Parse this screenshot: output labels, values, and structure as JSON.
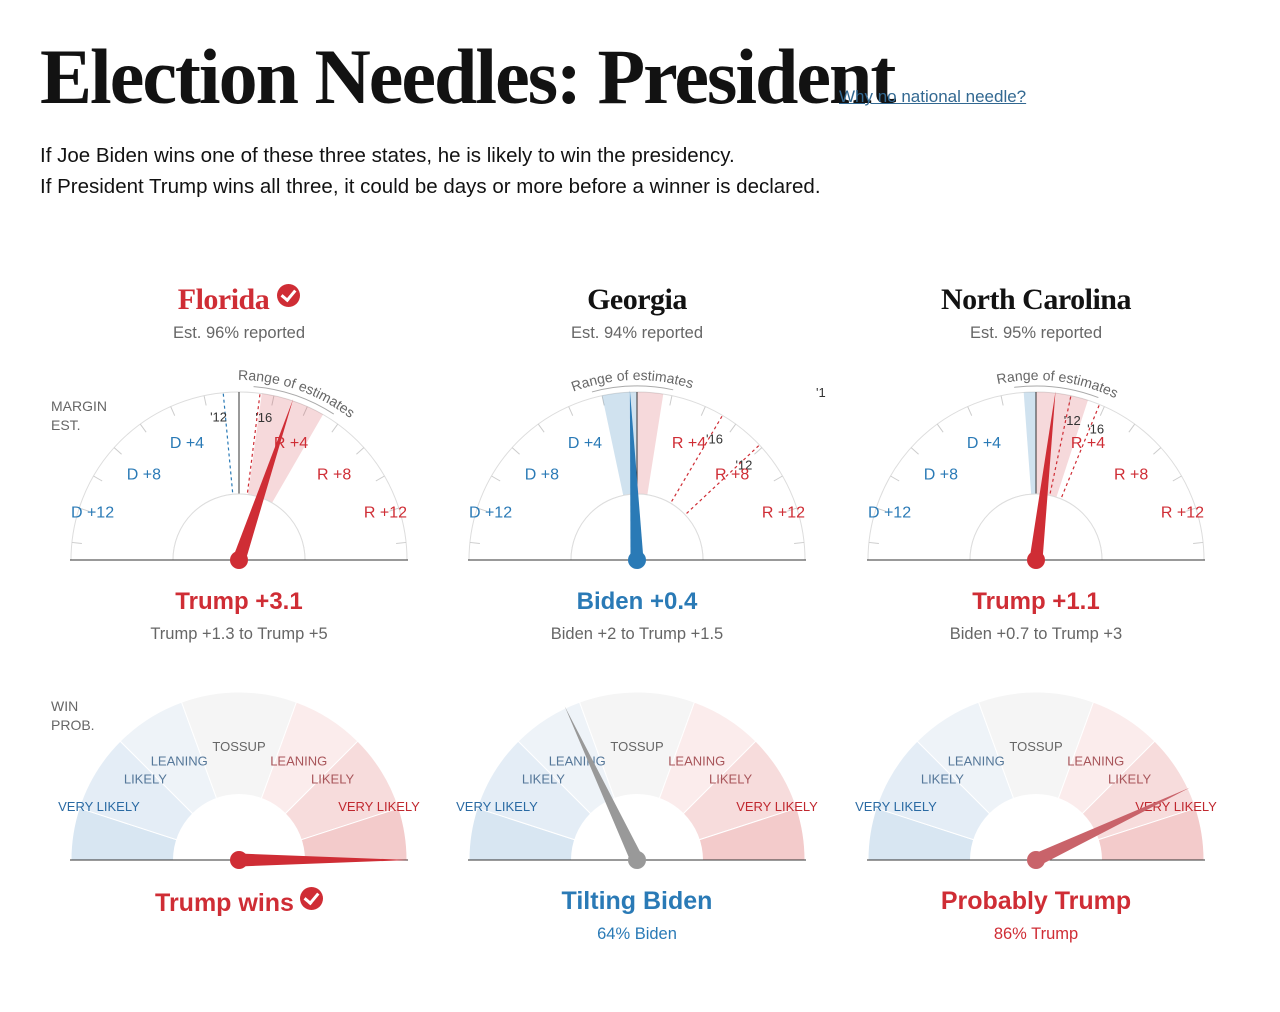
{
  "page": {
    "title": "Election Needles: President",
    "why_link": "Why no national needle?",
    "intro_line_1": "If Joe Biden wins one of these three states, he is likely to win the presidency.",
    "intro_line_2": "If President Trump wins all three, it could be days or more before a winner is declared.",
    "margin_label": [
      "MARGIN",
      "EST."
    ],
    "prob_label": [
      "WIN",
      "PROB."
    ]
  },
  "colors": {
    "dem": "#2a7ab6",
    "rep": "#cf2d35",
    "gray": "#999999",
    "probably_trump": "#c9636a"
  },
  "gauge_text": {
    "range_of_estimates": "Range of estimates",
    "margin_ticks_left": [
      "D +4",
      "D +8",
      "D +12"
    ],
    "margin_ticks_right": [
      "R +4",
      "R +8",
      "R +12"
    ],
    "prob_zones_left": [
      "LEANING",
      "LIKELY",
      "VERY LIKELY"
    ],
    "prob_zone_center": "TOSSUP",
    "prob_zones_right": [
      "LEANING",
      "LIKELY",
      "VERY LIKELY"
    ],
    "y12": "'12",
    "y16": "'16",
    "y1_partial": "'1"
  },
  "states": [
    {
      "name": "Florida",
      "called": true,
      "reported": "Est. 96% reported",
      "margin_value": 3.1,
      "margin_text": "Trump +3.1",
      "margin_range_text": "Trump +1.3 to Trump +5",
      "range": [
        1.3,
        5
      ],
      "hist_2012": -0.9,
      "hist_2016": 1.2,
      "prob_trump": 1.0,
      "prob_status": "Trump wins",
      "prob_detail": "",
      "winner": "rep",
      "prob_needle": "rep"
    },
    {
      "name": "Georgia",
      "called": false,
      "reported": "Est. 94% reported",
      "margin_value": -0.4,
      "margin_text": "Biden +0.4",
      "margin_range_text": "Biden +2 to Trump +1.5",
      "range": [
        -2,
        1.5
      ],
      "hist_2012": 7.8,
      "hist_2016": 5.1,
      "prob_trump": 0.36,
      "prob_status": "Tilting Biden",
      "prob_detail": "64% Biden",
      "winner": "dem",
      "prob_needle": "gray"
    },
    {
      "name": "North Carolina",
      "called": false,
      "reported": "Est. 95% reported",
      "margin_value": 1.1,
      "margin_text": "Trump +1.1",
      "margin_range_text": "Biden +0.7 to Trump +3",
      "range": [
        -0.7,
        3
      ],
      "hist_2012": 2.0,
      "hist_2016": 3.7,
      "prob_trump": 0.86,
      "prob_status": "Probably Trump",
      "prob_detail": "86% Trump",
      "winner": "rep",
      "prob_needle": "probably_trump"
    }
  ]
}
